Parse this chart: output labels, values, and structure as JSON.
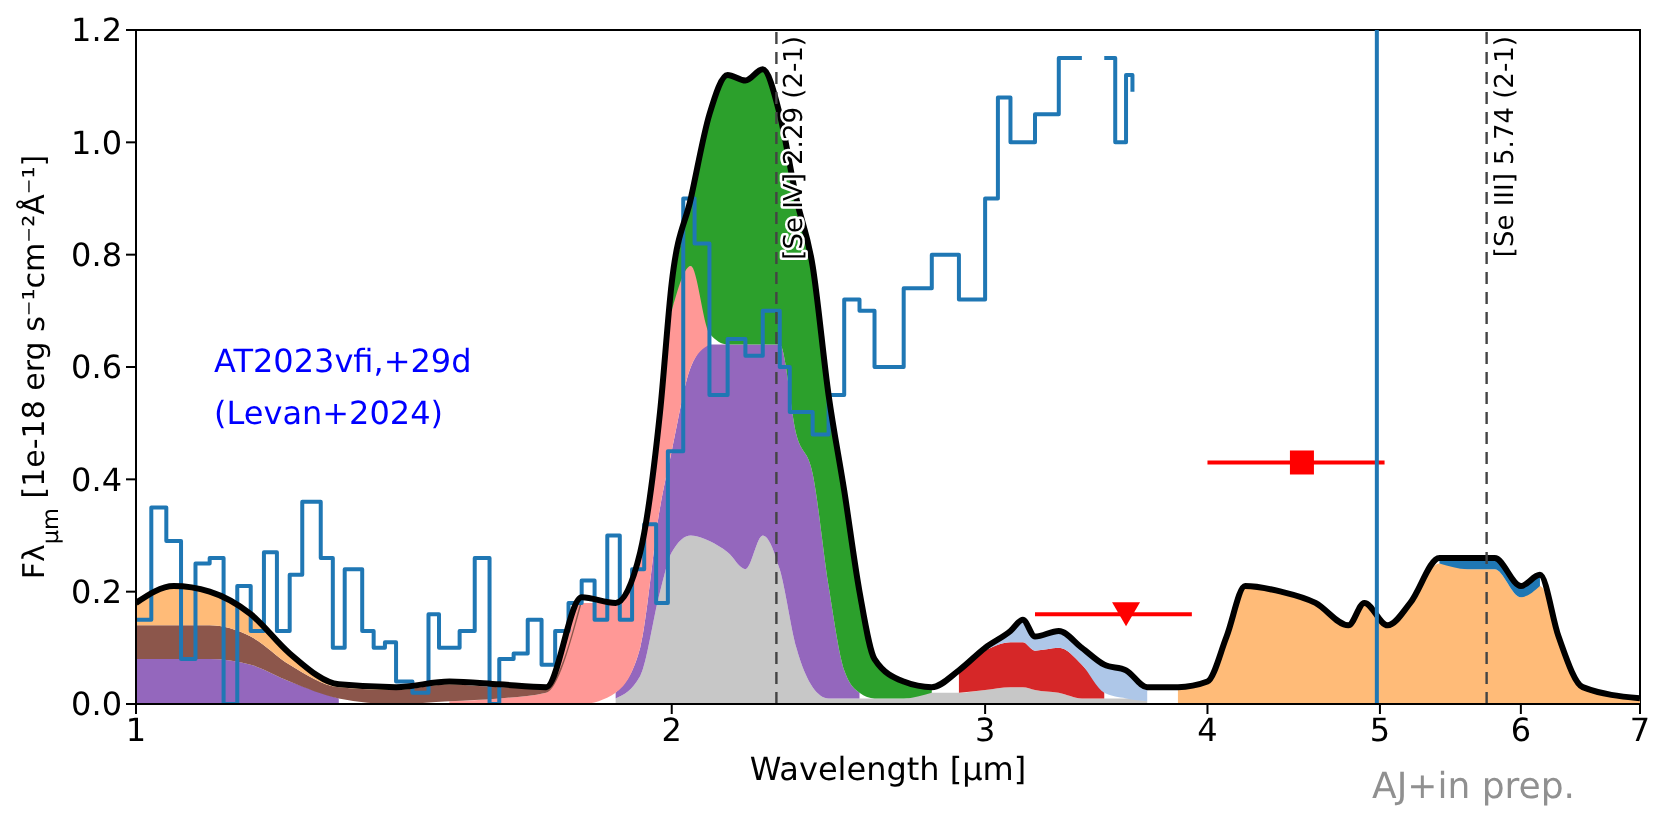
{
  "chart_data": {
    "type": "area",
    "stacked": true,
    "log": "x",
    "xlabel": "Wavelength [μm]",
    "ylabel": "Fλ$_{μm}$ [1e-18 erg s⁻¹cm⁻²Å⁻¹]",
    "xlim": [
      1,
      7
    ],
    "xticks": [
      1,
      2,
      3,
      4,
      5,
      6,
      7
    ],
    "ylim": [
      0,
      1.2
    ],
    "yticks": [
      {
        "value": 0,
        "label": "0.0"
      },
      {
        "value": 0.2,
        "label": "0.2"
      },
      {
        "value": 0.4,
        "label": "0.4"
      },
      {
        "value": 0.6,
        "label": "0.6"
      },
      {
        "value": 0.8,
        "label": "0.8"
      },
      {
        "value": 1,
        "label": "1.0"
      },
      {
        "value": 1.2,
        "label": "1.2"
      }
    ],
    "x": [
      1.0,
      1.05,
      1.1,
      1.16,
      1.22,
      1.3,
      1.4,
      1.5,
      1.6,
      1.7,
      1.78,
      1.86,
      1.92,
      1.97,
      2.0,
      2.05,
      2.1,
      2.15,
      2.2,
      2.25,
      2.3,
      2.35,
      2.4,
      2.45,
      2.5,
      2.55,
      2.6,
      2.7,
      2.8,
      2.9,
      3.0,
      3.1,
      3.15,
      3.2,
      3.3,
      3.4,
      3.5,
      3.6,
      3.7,
      3.85,
      4.0,
      4.1,
      4.2,
      4.4,
      4.6,
      4.8,
      4.9,
      5.05,
      5.2,
      5.4,
      5.6,
      5.8,
      6.0,
      6.15,
      6.3,
      6.5,
      7.0
    ],
    "series": [
      {
        "color": "#c7c7c7",
        "values": [
          null,
          null,
          null,
          null,
          null,
          null,
          null,
          null,
          null,
          null,
          null,
          0.01,
          0.05,
          0.2,
          0.27,
          0.3,
          0.29,
          0.27,
          0.24,
          0.3,
          0.24,
          0.1,
          0.03,
          0.01,
          0.01,
          0.01,
          0.01,
          0.01,
          0.02,
          0.02,
          0.025,
          0.03,
          0.03,
          0.025,
          0.02,
          0.01,
          0.01,
          0.01,
          0.005,
          null,
          null,
          null,
          null,
          null,
          null,
          null,
          null,
          null,
          null,
          null,
          null,
          null,
          null,
          null,
          null,
          null,
          null
        ]
      },
      {
        "color": "#9467bd",
        "values": [
          0.08,
          0.08,
          0.08,
          0.07,
          0.04,
          0.01,
          null,
          null,
          null,
          null,
          null,
          0.01,
          0.05,
          0.15,
          0.18,
          0.3,
          0.35,
          0.37,
          0.4,
          0.34,
          0.4,
          0.38,
          0.38,
          0.2,
          0.05,
          0.01,
          null,
          null,
          null,
          null,
          null,
          null,
          null,
          null,
          null,
          null,
          null,
          null,
          null,
          null,
          null,
          null,
          null,
          null,
          null,
          null,
          null,
          null,
          null,
          null,
          null,
          null,
          null,
          null,
          null,
          null,
          null
        ]
      },
      {
        "color": "#ff9896",
        "values": [
          null,
          null,
          null,
          null,
          null,
          null,
          null,
          0.005,
          0.01,
          0.02,
          0.18,
          0.16,
          0.17,
          0.17,
          0.25,
          0.18,
          0.02,
          null,
          null,
          null,
          null,
          null,
          null,
          null,
          null,
          null,
          null,
          null,
          null,
          null,
          null,
          null,
          null,
          null,
          null,
          null,
          null,
          null,
          null,
          null,
          null,
          null,
          null,
          null,
          null,
          null,
          null,
          null,
          null,
          null,
          null,
          null,
          null,
          null,
          null,
          null,
          null
        ]
      },
      {
        "color": "#2ca02c",
        "values": [
          null,
          null,
          null,
          null,
          null,
          null,
          null,
          null,
          null,
          null,
          null,
          null,
          null,
          null,
          0.05,
          0.12,
          0.39,
          0.48,
          0.47,
          0.49,
          0.41,
          0.42,
          0.37,
          0.34,
          0.32,
          0.18,
          0.07,
          0.03,
          0.01,
          null,
          null,
          null,
          null,
          null,
          null,
          null,
          null,
          null,
          null,
          null,
          null,
          null,
          null,
          null,
          null,
          null,
          null,
          null,
          null,
          null,
          null,
          null,
          null,
          null,
          null,
          null,
          null
        ]
      },
      {
        "color": "#8c564b",
        "values": [
          0.06,
          0.06,
          0.06,
          0.05,
          0.03,
          0.02,
          0.025,
          0.03,
          0.02,
          0.01,
          0.01,
          null,
          null,
          null,
          null,
          null,
          null,
          null,
          null,
          null,
          null,
          null,
          null,
          null,
          null,
          null,
          null,
          null,
          null,
          null,
          null,
          null,
          null,
          null,
          null,
          null,
          null,
          null,
          null,
          null,
          null,
          null,
          null,
          null,
          null,
          null,
          null,
          null,
          null,
          null,
          null,
          null,
          null,
          null,
          null,
          null,
          null
        ]
      },
      {
        "color": "#ffbb78",
        "values": [
          0.04,
          0.07,
          0.06,
          0.04,
          0.02,
          0.005,
          0.005,
          0.005,
          0.005,
          null,
          null,
          null,
          null,
          null,
          null,
          null,
          null,
          null,
          null,
          null,
          null,
          null,
          null,
          null,
          null,
          null,
          null,
          null,
          null,
          null,
          null,
          null,
          null,
          null,
          null,
          null,
          null,
          null,
          null,
          0.03,
          0.04,
          0.12,
          0.21,
          0.2,
          0.18,
          0.14,
          0.18,
          0.14,
          0.18,
          0.25,
          0.24,
          0.24,
          0.19,
          0.21,
          0.12,
          0.03,
          0.01
        ]
      },
      {
        "color": "#d62728",
        "values": [
          null,
          null,
          null,
          null,
          null,
          null,
          null,
          null,
          null,
          null,
          null,
          null,
          null,
          null,
          null,
          null,
          null,
          null,
          null,
          null,
          null,
          null,
          null,
          null,
          null,
          null,
          null,
          null,
          null,
          0.04,
          0.07,
          0.08,
          0.08,
          0.07,
          0.08,
          0.06,
          0.01,
          null,
          null,
          null,
          null,
          null,
          null,
          null,
          null,
          null,
          null,
          null,
          null,
          null,
          null,
          null,
          null,
          null,
          null,
          null,
          null
        ]
      },
      {
        "color": "#aec7e8",
        "values": [
          null,
          null,
          null,
          null,
          null,
          null,
          null,
          null,
          null,
          null,
          null,
          null,
          null,
          null,
          null,
          null,
          null,
          null,
          null,
          null,
          null,
          null,
          null,
          null,
          null,
          null,
          null,
          null,
          null,
          null,
          0.005,
          0.02,
          0.04,
          0.025,
          0.03,
          0.03,
          0.05,
          0.05,
          0.025,
          null,
          null,
          null,
          null,
          null,
          null,
          null,
          null,
          null,
          null,
          null,
          null,
          null,
          null,
          null,
          null,
          null,
          null
        ]
      },
      {
        "color": "#1f77b4",
        "values": [
          null,
          null,
          null,
          null,
          null,
          null,
          null,
          null,
          null,
          null,
          null,
          null,
          null,
          null,
          null,
          null,
          null,
          null,
          null,
          null,
          null,
          null,
          null,
          null,
          null,
          null,
          null,
          null,
          null,
          null,
          null,
          null,
          null,
          null,
          null,
          null,
          null,
          null,
          null,
          null,
          null,
          null,
          null,
          null,
          null,
          null,
          null,
          null,
          null,
          0.01,
          0.02,
          0.02,
          0.02,
          0.02,
          null,
          null,
          null
        ]
      },
      {
        "type": "step",
        "color": "#1f77b4",
        "x": [
          1.0,
          1.02,
          1.04,
          1.06,
          1.08,
          1.1,
          1.12,
          1.14,
          1.16,
          1.18,
          1.2,
          1.22,
          1.24,
          1.27,
          1.29,
          1.31,
          1.34,
          1.36,
          1.38,
          1.4,
          1.43,
          1.46,
          1.48,
          1.52,
          1.55,
          1.58,
          1.6,
          1.63,
          1.66,
          1.69,
          1.72,
          1.75,
          1.78,
          1.81,
          1.84,
          1.87,
          1.9,
          1.93,
          1.96,
          1.99,
          2.03,
          2.06,
          2.1,
          2.15,
          2.2,
          2.25,
          2.3,
          2.33,
          2.4,
          2.45,
          2.5,
          2.55,
          2.6,
          2.7,
          2.8,
          2.9,
          3.0,
          3.05,
          3.1,
          3.2,
          3.3,
          3.4,
          3.45,
          3.5,
          3.55,
          3.6,
          3.63
        ],
        "values": [
          0.15,
          0.35,
          0.29,
          0.08,
          0.25,
          0.26,
          0.0,
          0.21,
          0.13,
          0.27,
          0.13,
          0.23,
          0.36,
          0.26,
          0.1,
          0.24,
          0.13,
          0.1,
          0.11,
          0.04,
          0.02,
          0.16,
          0.1,
          0.13,
          0.26,
          0.0,
          0.08,
          0.09,
          0.15,
          0.07,
          0.13,
          0.18,
          0.22,
          0.15,
          0.3,
          0.15,
          0.24,
          0.32,
          0.18,
          0.45,
          0.9,
          0.82,
          0.55,
          0.65,
          0.62,
          0.7,
          0.6,
          0.52,
          0.48,
          0.55,
          0.72,
          0.7,
          0.6,
          0.74,
          0.8,
          0.72,
          0.9,
          1.08,
          1.0,
          1.05,
          1.15,
          1.15,
          null,
          1.15,
          1.0,
          1.12,
          1.09
        ]
      },
      {
        "type": "line",
        "color": "#000000",
        "values": [
          0.18,
          0.21,
          0.2,
          0.16,
          0.09,
          0.035,
          0.03,
          0.04,
          0.035,
          0.03,
          0.19,
          0.18,
          0.27,
          0.52,
          0.75,
          0.9,
          1.05,
          1.12,
          1.11,
          1.13,
          1.05,
          0.9,
          0.78,
          0.55,
          0.38,
          0.2,
          0.08,
          0.04,
          0.03,
          0.06,
          0.1,
          0.13,
          0.15,
          0.12,
          0.13,
          0.1,
          0.07,
          0.06,
          0.03,
          0.03,
          0.04,
          0.12,
          0.21,
          0.2,
          0.18,
          0.14,
          0.18,
          0.14,
          0.18,
          0.26,
          0.26,
          0.26,
          0.21,
          0.23,
          0.12,
          0.03,
          0.01
        ]
      },
      {
        "type": "scatter",
        "marker": "triangle",
        "color": "#ff0000",
        "x": [
          3.6
        ],
        "values": [
          0.16
        ],
        "xerrors": [
          [
            3.2,
            3.92
          ]
        ]
      },
      {
        "type": "scatter",
        "marker": "square",
        "color": "#ff0000",
        "x": [
          4.52
        ],
        "values": [
          0.43
        ],
        "xerrors": [
          [
            4.0,
            5.03
          ]
        ]
      }
    ],
    "ref_lines": [
      {
        "axis": "x",
        "value": 2.29,
        "label": "[Se IV] 2.29 (2-1)",
        "color": "#444444",
        "line_style": "dashed"
      },
      {
        "axis": "x",
        "value": 4.98,
        "color": "#1f77b4",
        "line_style": "solid"
      },
      {
        "axis": "x",
        "value": 5.74,
        "label": "[Se III] 5.74 (2-1)",
        "color": "#444444",
        "line_style": "dashed"
      }
    ],
    "annotations": [
      "AT2023vfi,+29d",
      "(Levan+2024)",
      "AJ+in prep."
    ]
  }
}
